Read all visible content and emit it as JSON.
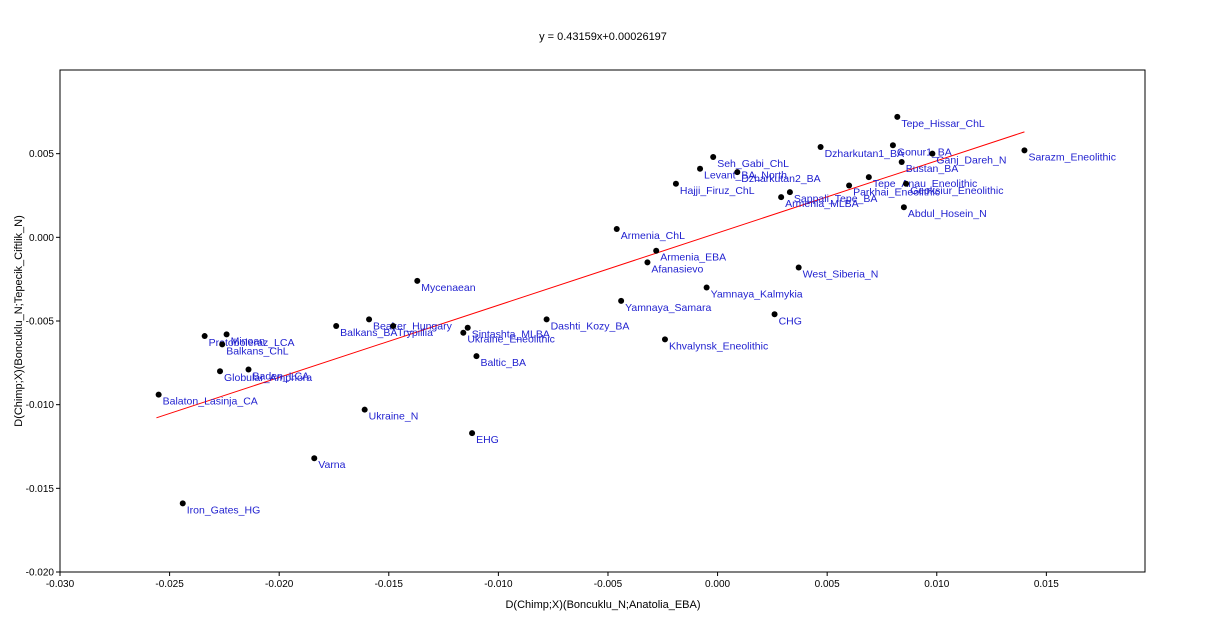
{
  "chart_data": {
    "type": "scatter",
    "title": "y = 0.43159x+0.00026197",
    "xlabel": "D(Chimp;X)(Boncuklu_N;Anatolia_EBA)",
    "ylabel": "D(Chimp;X)(Boncuklu_N;Tepecik_Ciftlik_N)",
    "xlim": [
      -0.03,
      0.0195
    ],
    "ylim": [
      -0.02,
      0.01
    ],
    "x_ticks": [
      -0.03,
      -0.025,
      -0.02,
      -0.015,
      -0.01,
      -0.005,
      0.0,
      0.005,
      0.01,
      0.015
    ],
    "x_tick_labels": [
      "-0.030",
      "-0.025",
      "-0.020",
      "-0.015",
      "-0.010",
      "-0.005",
      "0.000",
      "0.005",
      "0.010",
      "0.015"
    ],
    "y_ticks": [
      -0.02,
      -0.015,
      -0.01,
      -0.005,
      0.0,
      0.005
    ],
    "y_tick_labels": [
      "-0.020",
      "-0.015",
      "-0.010",
      "-0.005",
      "0.000",
      "0.005"
    ],
    "grid": false,
    "point_color": "#000000",
    "label_color": "#1f1fcf",
    "regression": {
      "slope": 0.43159,
      "intercept": 0.00026197,
      "x_range": [
        -0.0256,
        0.014
      ],
      "color": "#ff0000"
    },
    "points": [
      {
        "name": "Tepe_Hissar_ChL",
        "x": 0.0082,
        "y": 0.0072
      },
      {
        "name": "Dzharkutan1_BA",
        "x": 0.0047,
        "y": 0.0054
      },
      {
        "name": "Gonur1_BA",
        "x": 0.008,
        "y": 0.0055
      },
      {
        "name": "Ganj_Dareh_N",
        "x": 0.0098,
        "y": 0.005
      },
      {
        "name": "Bustan_BA",
        "x": 0.0084,
        "y": 0.0045
      },
      {
        "name": "Sarazm_Eneolithic",
        "x": 0.014,
        "y": 0.0052
      },
      {
        "name": "Seh_Gabi_ChL",
        "x": -0.0002,
        "y": 0.0048
      },
      {
        "name": "Levant_BA_North",
        "x": -0.0008,
        "y": 0.0041
      },
      {
        "name": "Tepe_Anau_Eneolithic",
        "x": 0.0069,
        "y": 0.0036
      },
      {
        "name": "Parkhai_Eneolithic",
        "x": 0.006,
        "y": 0.0031
      },
      {
        "name": "Dzharkutan2_BA",
        "x": 0.0009,
        "y": 0.0039
      },
      {
        "name": "Hajji_Firuz_ChL",
        "x": -0.0019,
        "y": 0.0032
      },
      {
        "name": "Geoksiur_Eneolithic",
        "x": 0.0086,
        "y": 0.0032
      },
      {
        "name": "Armenia_MLBA",
        "x": 0.0029,
        "y": 0.0024
      },
      {
        "name": "Sappali_Tepe_BA",
        "x": 0.0033,
        "y": 0.0027
      },
      {
        "name": "Abdul_Hosein_N",
        "x": 0.0085,
        "y": 0.0018
      },
      {
        "name": "Armenia_ChL",
        "x": -0.0046,
        "y": 0.0005
      },
      {
        "name": "Armenia_EBA",
        "x": -0.0028,
        "y": -0.0008
      },
      {
        "name": "Afanasievo",
        "x": -0.0032,
        "y": -0.0015
      },
      {
        "name": "West_Siberia_N",
        "x": 0.0037,
        "y": -0.0018
      },
      {
        "name": "Mycenaean",
        "x": -0.0137,
        "y": -0.0026
      },
      {
        "name": "Yamnaya_Kalmykia",
        "x": -0.0005,
        "y": -0.003
      },
      {
        "name": "Yamnaya_Samara",
        "x": -0.0044,
        "y": -0.0038
      },
      {
        "name": "CHG",
        "x": 0.0026,
        "y": -0.0046
      },
      {
        "name": "Beaker_Hungary",
        "x": -0.0159,
        "y": -0.0049
      },
      {
        "name": "Dashti_Kozy_BA",
        "x": -0.0078,
        "y": -0.0049
      },
      {
        "name": "Balkans_BA",
        "x": -0.0174,
        "y": -0.0053
      },
      {
        "name": "Trypillia",
        "x": -0.0148,
        "y": -0.0053
      },
      {
        "name": "Sintashta_MLBA",
        "x": -0.0114,
        "y": -0.0054
      },
      {
        "name": "Ukraine_Eneolithic",
        "x": -0.0116,
        "y": -0.0057
      },
      {
        "name": "Minoan",
        "x": -0.0224,
        "y": -0.0058
      },
      {
        "name": "Protoboleraz_LCA",
        "x": -0.0234,
        "y": -0.0059
      },
      {
        "name": "Khvalynsk_Eneolithic",
        "x": -0.0024,
        "y": -0.0061
      },
      {
        "name": "Balkans_ChL",
        "x": -0.0226,
        "y": -0.0064
      },
      {
        "name": "Baltic_BA",
        "x": -0.011,
        "y": -0.0071
      },
      {
        "name": "Baden_LCA",
        "x": -0.0214,
        "y": -0.0079
      },
      {
        "name": "Globular_Amphora",
        "x": -0.0227,
        "y": -0.008
      },
      {
        "name": "Balaton_Lasinja_CA",
        "x": -0.0255,
        "y": -0.0094
      },
      {
        "name": "Ukraine_N",
        "x": -0.0161,
        "y": -0.0103
      },
      {
        "name": "EHG",
        "x": -0.0112,
        "y": -0.0117
      },
      {
        "name": "Varna",
        "x": -0.0184,
        "y": -0.0132
      },
      {
        "name": "Iron_Gates_HG",
        "x": -0.0244,
        "y": -0.0159
      }
    ]
  }
}
